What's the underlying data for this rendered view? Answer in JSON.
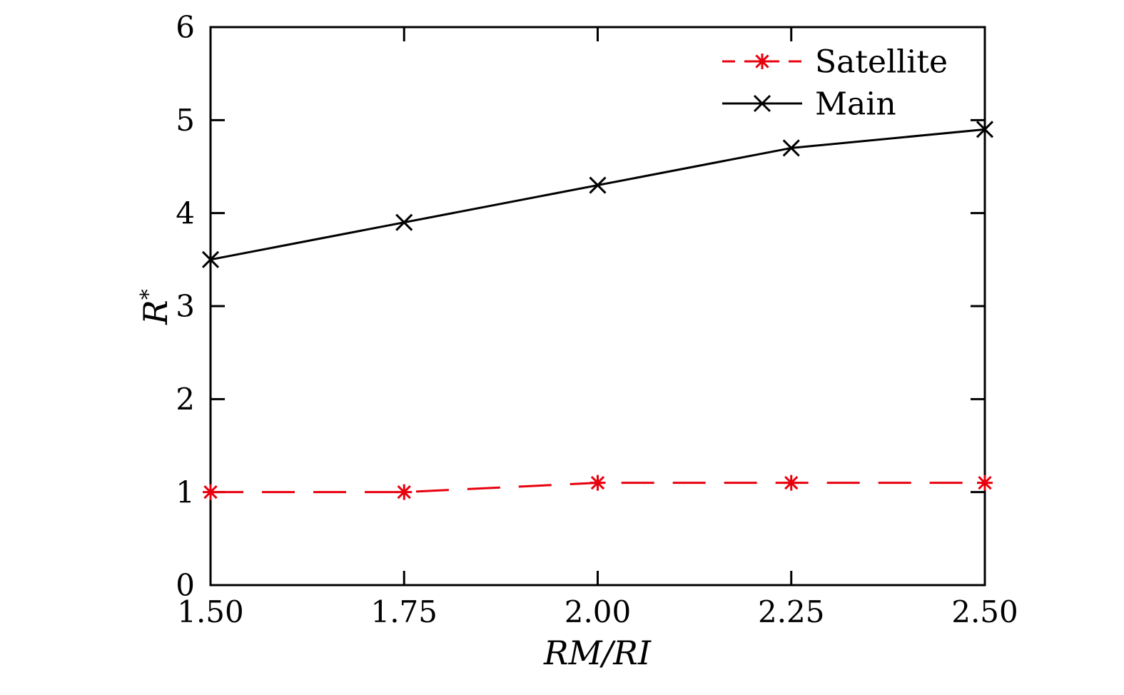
{
  "figure": {
    "background": "#ffffff",
    "axis_color": "#000000"
  },
  "chart_data": {
    "type": "line",
    "title": "",
    "xlabel": "RM/RI",
    "ylabel": "R*",
    "ylabel_base": "R",
    "ylabel_sup": "*",
    "xlim": [
      1.5,
      2.5
    ],
    "ylim": [
      0,
      6
    ],
    "grid": false,
    "legend_position": "top-right inside",
    "x": [
      1.5,
      1.75,
      2.0,
      2.25,
      2.5
    ],
    "xticks": {
      "values": [
        1.5,
        1.75,
        2.0,
        2.25,
        2.5
      ],
      "labels": [
        "1.50",
        "1.75",
        "2.00",
        "2.25",
        "2.50"
      ]
    },
    "yticks": {
      "values": [
        0,
        1,
        2,
        3,
        4,
        5,
        6
      ],
      "labels": [
        "0",
        "1",
        "2",
        "3",
        "4",
        "5",
        "6"
      ]
    },
    "series": [
      {
        "name": "Satellite",
        "values": [
          1.0,
          1.0,
          1.1,
          1.1,
          1.1
        ],
        "color": "#e8000d",
        "line_style": "dashed",
        "marker": "asterisk"
      },
      {
        "name": "Main",
        "values": [
          3.5,
          3.9,
          4.3,
          4.7,
          4.9
        ],
        "color": "#000000",
        "line_style": "solid",
        "marker": "x"
      }
    ]
  }
}
